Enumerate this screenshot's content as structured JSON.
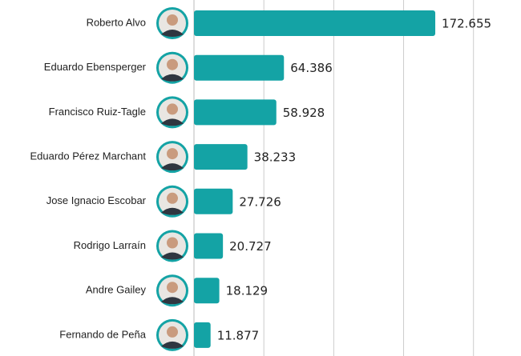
{
  "chart_data": {
    "type": "bar",
    "orientation": "horizontal",
    "categories": [
      "Roberto Alvo",
      "Eduardo Ebensperger",
      "Francisco Ruiz-Tagle",
      "Eduardo Pérez Marchant",
      "Jose Ignacio Escobar",
      "Rodrigo Larraín",
      "Andre Gailey",
      "Fernando de Peña"
    ],
    "values": [
      172655,
      64386,
      58928,
      38233,
      27726,
      20727,
      18129,
      11877
    ],
    "value_labels": [
      "172.655",
      "64.386",
      "58.928",
      "38.233",
      "27.726",
      "20.727",
      "18.129",
      "11.877"
    ],
    "color": "#14a3a5",
    "xlim": [
      0,
      234000
    ],
    "xticks": [
      0,
      50000,
      100000,
      150000,
      200000
    ],
    "grid": true
  }
}
